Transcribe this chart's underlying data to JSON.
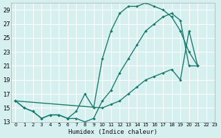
{
  "title": "",
  "xlabel": "Humidex (Indice chaleur)",
  "ylabel": "",
  "bg_color": "#d6f0f0",
  "grid_color": "#ffffff",
  "line_color": "#1a7a6e",
  "xlim": [
    -0.5,
    23
  ],
  "ylim": [
    13,
    30
  ],
  "yticks": [
    13,
    15,
    17,
    19,
    21,
    23,
    25,
    27,
    29
  ],
  "xticks": [
    0,
    1,
    2,
    3,
    4,
    5,
    6,
    7,
    8,
    9,
    10,
    11,
    12,
    13,
    14,
    15,
    16,
    17,
    18,
    19,
    20,
    21,
    22,
    23
  ],
  "series1_x": [
    0,
    1,
    2,
    3,
    4,
    5,
    6,
    7,
    8,
    9,
    10,
    11,
    12,
    13,
    14,
    15,
    16,
    17,
    18,
    19,
    20,
    21
  ],
  "series1_y": [
    16,
    15,
    14.5,
    13.5,
    14,
    14,
    13.5,
    13.5,
    13,
    13.5,
    16,
    17.5,
    20,
    22,
    24,
    26,
    27,
    28,
    28.5,
    27.5,
    21,
    21
  ],
  "series2_x": [
    0,
    1,
    2,
    3,
    4,
    5,
    6,
    7,
    8,
    9,
    10,
    11,
    12,
    13,
    14,
    15,
    16,
    17,
    18,
    19,
    20,
    21
  ],
  "series2_y": [
    16,
    15,
    14.5,
    13.5,
    14,
    14,
    13.5,
    14.5,
    17,
    15,
    22,
    26,
    28.5,
    29.5,
    29.5,
    30,
    29.5,
    29,
    28,
    26,
    23,
    21
  ],
  "series3_x": [
    0,
    10,
    11,
    12,
    13,
    14,
    15,
    16,
    17,
    18,
    19,
    20,
    21
  ],
  "series3_y": [
    16,
    15,
    15.5,
    16,
    17,
    18,
    19,
    19.5,
    20,
    20.5,
    19,
    26,
    21
  ]
}
